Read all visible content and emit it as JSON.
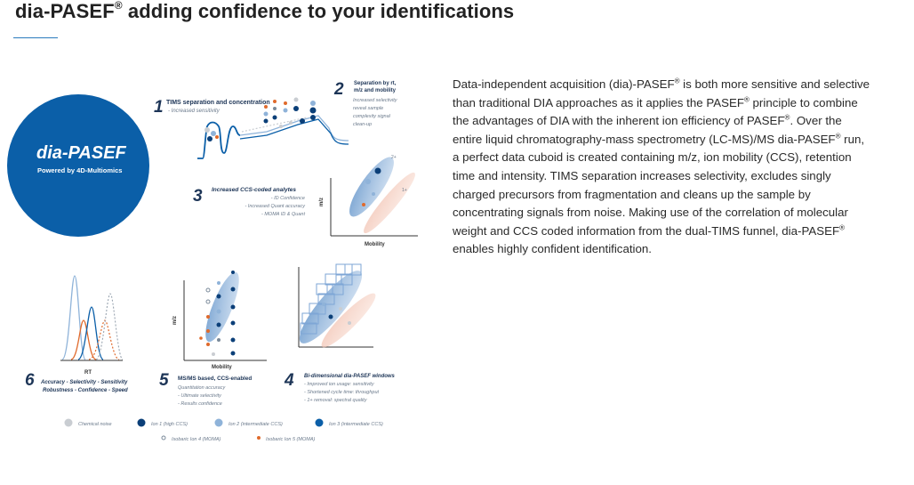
{
  "page": {
    "title_main": "dia-PASEF",
    "title_reg": "®",
    "title_rest": " adding confidence to your identifications"
  },
  "figure": {
    "logo": {
      "name": "dia-PASEF",
      "tagline": "Powered by 4D-Multiomics"
    },
    "steps": [
      {
        "num": "1",
        "title": "TIMS separation and concentration",
        "lines": [
          "- Increased sensitivity"
        ]
      },
      {
        "num": "2",
        "title": "Separation by rt,",
        "title2": "m/z and mobility",
        "lines": [
          "Increased selectivity",
          "reveal sample",
          "complexity signal",
          "clean-up"
        ]
      },
      {
        "num": "3",
        "title": "Increased CCS-coded analytes",
        "lines": [
          "- ID Confidence",
          "- Increased Quant accuracy",
          "- MOMA ID & Quant"
        ]
      },
      {
        "num": "4",
        "title": "Bi-dimensional dia-PASEF windows",
        "lines": [
          "- Improved ion usage: sensitivity",
          "- Shortened cycle time: throughput",
          "- 1+ removal: spectral quality"
        ]
      },
      {
        "num": "5",
        "title": "MS/MS based, CCS-enabled",
        "lines": [
          "Quantitation accuracy",
          "- Ultimate selectivity",
          "- Results confidence"
        ]
      },
      {
        "num": "6",
        "title": "Accuracy - Selectivity - Sensitivity",
        "title2": "Robustness - Confidence - Speed",
        "lines": []
      }
    ],
    "axes": {
      "mz": "m/z",
      "mobility": "Mobility",
      "rt": "RT",
      "p2": "2+",
      "p1": "1+"
    },
    "legend": [
      {
        "label": "Chemical noise",
        "color": "#c9cdd2",
        "marker": "dot"
      },
      {
        "label": "Ion 1 (high CCS)",
        "color": "#0b3f78",
        "marker": "dot"
      },
      {
        "label": "Ion 2 (intermediate CCS)",
        "color": "#8fb3d9",
        "marker": "dot"
      },
      {
        "label": "Ion 3 (intermediate CCS)",
        "color": "#0b5fa8",
        "marker": "dot"
      },
      {
        "label": "Isobaric Ion 4 (MOMA)",
        "color": "#7a8a9a",
        "marker": "ring"
      },
      {
        "label": "Isobaric Ion 5 (MOMA)",
        "color": "#e06a2c",
        "marker": "small"
      }
    ],
    "colors": {
      "brand_blue": "#0b5fa8",
      "dark_blue": "#0b3f78",
      "light_blue": "#8fb3d9",
      "orange": "#e06a2c",
      "grey": "#c9cdd2"
    }
  },
  "description": {
    "p1": "Data-independent acquisition (dia)-PASEF",
    "p2": " is both more sensitive and selective than traditional DIA approaches as it applies the PASEF",
    "p3": " principle to combine the advantages of DIA with the inherent ion efficiency of PASEF",
    "p4": ". Over the entire liquid chromatography-mass spectrometry (LC-MS)/MS dia-PASEF",
    "p5": " run, a perfect data cuboid is created containing m/z, ion mobility (CCS), retention time and intensity. TIMS separation increases selectivity, excludes singly charged precursors from fragmentation and cleans up the sample by concentrating signals from noise. Making use of the correlation of molecular weight and CCS coded information from the dual-TIMS funnel, dia-PASEF",
    "p6": " enables highly confident identification.",
    "reg": "®"
  }
}
